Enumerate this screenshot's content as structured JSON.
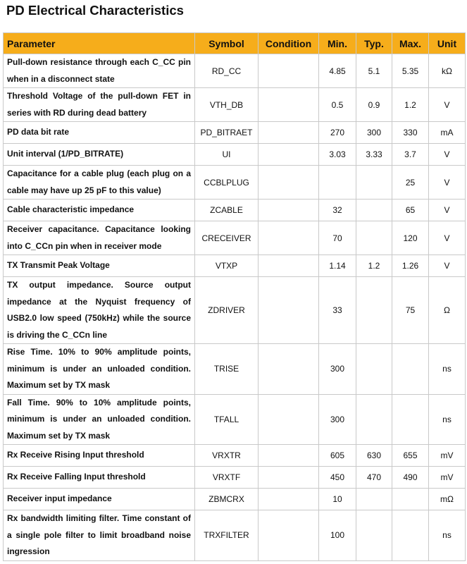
{
  "title": "PD Electrical Characteristics",
  "header": {
    "parameter": "Parameter",
    "symbol": "Symbol",
    "condition": "Condition",
    "min": "Min.",
    "typ": "Typ.",
    "max": "Max.",
    "unit": "Unit"
  },
  "header_color": "#f6ad1b",
  "rows": [
    {
      "parameter": "Pull-down resistance through each C_CC pin when in a disconnect state",
      "symbol": "RD_CC",
      "condition": "",
      "min": "4.85",
      "typ": "5.1",
      "max": "5.35",
      "unit": "kΩ"
    },
    {
      "parameter": "Threshold Voltage of the pull-down FET in series with RD during dead battery",
      "symbol": "VTH_DB",
      "condition": "",
      "min": "0.5",
      "typ": "0.9",
      "max": "1.2",
      "unit": "V"
    },
    {
      "parameter": "PD data bit rate",
      "symbol": "PD_BITRAET",
      "condition": "",
      "min": "270",
      "typ": "300",
      "max": "330",
      "unit": "mA"
    },
    {
      "parameter": "Unit interval (1/PD_BITRATE)",
      "symbol": "UI",
      "condition": "",
      "min": "3.03",
      "typ": "3.33",
      "max": "3.7",
      "unit": "V"
    },
    {
      "parameter": "Capacitance for a cable plug (each plug on a cable may have up 25 pF to this value)",
      "symbol": "CCBLPLUG",
      "condition": "",
      "min": "",
      "typ": "",
      "max": "25",
      "unit": "V"
    },
    {
      "parameter": "Cable characteristic impedance",
      "symbol": "ZCABLE",
      "condition": "",
      "min": "32",
      "typ": "",
      "max": "65",
      "unit": "V"
    },
    {
      "parameter": "Receiver capacitance. Capacitance looking into C_CCn pin when in receiver mode",
      "symbol": "CRECEIVER",
      "condition": "",
      "min": "70",
      "typ": "",
      "max": "120",
      "unit": "V"
    },
    {
      "parameter": "TX Transmit Peak Voltage",
      "symbol": "VTXP",
      "condition": "",
      "min": "1.14",
      "typ": "1.2",
      "max": "1.26",
      "unit": "V"
    },
    {
      "parameter": "TX output impedance. Source output impedance at the Nyquist frequency of USB2.0 low speed (750kHz) while the source is driving the C_CCn line",
      "symbol": "ZDRIVER",
      "condition": "",
      "min": "33",
      "typ": "",
      "max": "75",
      "unit": "Ω"
    },
    {
      "parameter": "Rise Time. 10% to 90% amplitude points, minimum is under an unloaded condition. Maximum set by TX mask",
      "symbol": "TRISE",
      "condition": "",
      "min": "300",
      "typ": "",
      "max": "",
      "unit": "ns"
    },
    {
      "parameter": "Fall Time. 90% to 10% amplitude points, minimum is under an unloaded condition. Maximum set by TX mask",
      "symbol": "TFALL",
      "condition": "",
      "min": "300",
      "typ": "",
      "max": "",
      "unit": "ns"
    },
    {
      "parameter": "Rx Receive Rising Input threshold",
      "symbol": "VRXTR",
      "condition": "",
      "min": "605",
      "typ": "630",
      "max": "655",
      "unit": "mV"
    },
    {
      "parameter": "Rx Receive Falling Input threshold",
      "symbol": "VRXTF",
      "condition": "",
      "min": "450",
      "typ": "470",
      "max": "490",
      "unit": "mV"
    },
    {
      "parameter": "Receiver input impedance",
      "symbol": "ZBMCRX",
      "condition": "",
      "min": "10",
      "typ": "",
      "max": "",
      "unit": "mΩ"
    },
    {
      "parameter": "Rx bandwidth limiting filter. Time constant of a single pole filter to limit broadband noise ingression",
      "symbol": "TRXFILTER",
      "condition": "",
      "min": "100",
      "typ": "",
      "max": "",
      "unit": "ns"
    }
  ]
}
